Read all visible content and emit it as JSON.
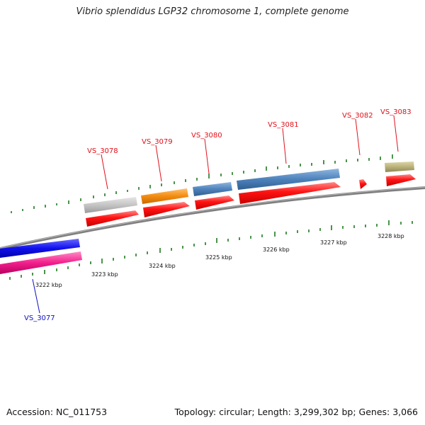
{
  "title": "Vibrio splendidus LGP32 chromosome 1, complete genome",
  "footer": {
    "accession": "Accession: NC_011753",
    "summary": "Topology: circular; Length: 3,299,302 bp; Genes: 3,066"
  },
  "colors": {
    "backbone": "#7f7f7f",
    "tick": "#1e7a1e",
    "gene_label_top": "#e0101a",
    "gene_label_bottom": "#1010c0",
    "cds_red": "#ff1010",
    "cds_gray": "#c4c4c4",
    "cds_orange": "#f38c10",
    "cds_steelblue": "#4d82bb",
    "cds_khaki": "#bbb27a",
    "cds_blue": "#1010ee",
    "cds_pink": "#f21f8c"
  },
  "kbp_labels": [
    "3222 kbp",
    "3223 kbp",
    "3224 kbp",
    "3225 kbp",
    "3226 kbp",
    "3227 kbp",
    "3228 kbp"
  ],
  "genes": [
    {
      "name": "VS_3077",
      "strand": "reverse"
    },
    {
      "name": "VS_3078",
      "strand": "forward"
    },
    {
      "name": "VS_3079",
      "strand": "forward"
    },
    {
      "name": "VS_3080",
      "strand": "forward"
    },
    {
      "name": "VS_3081",
      "strand": "forward"
    },
    {
      "name": "VS_3082",
      "strand": "forward"
    },
    {
      "name": "VS_3083",
      "strand": "forward"
    }
  ]
}
